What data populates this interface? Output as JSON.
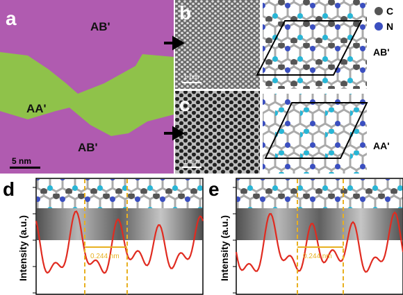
{
  "panels": {
    "a": {
      "label": "a",
      "regions": [
        "AB'",
        "AA'",
        "AB'"
      ],
      "scale_bar": "5 nm"
    },
    "b": {
      "label": "b",
      "scale_bar": "1 nm"
    },
    "c": {
      "label": "c",
      "scale_bar": "1 nm"
    },
    "models": {
      "legend": [
        "C",
        "N"
      ],
      "labels": [
        "AB'",
        "AA'"
      ]
    },
    "d": {
      "label": "d",
      "y_label": "Intensity (a.u.)",
      "distance": "0.244 nm"
    },
    "e": {
      "label": "e",
      "y_label": "Intensity (a.u.)",
      "distance": "0.244 nm"
    }
  }
}
